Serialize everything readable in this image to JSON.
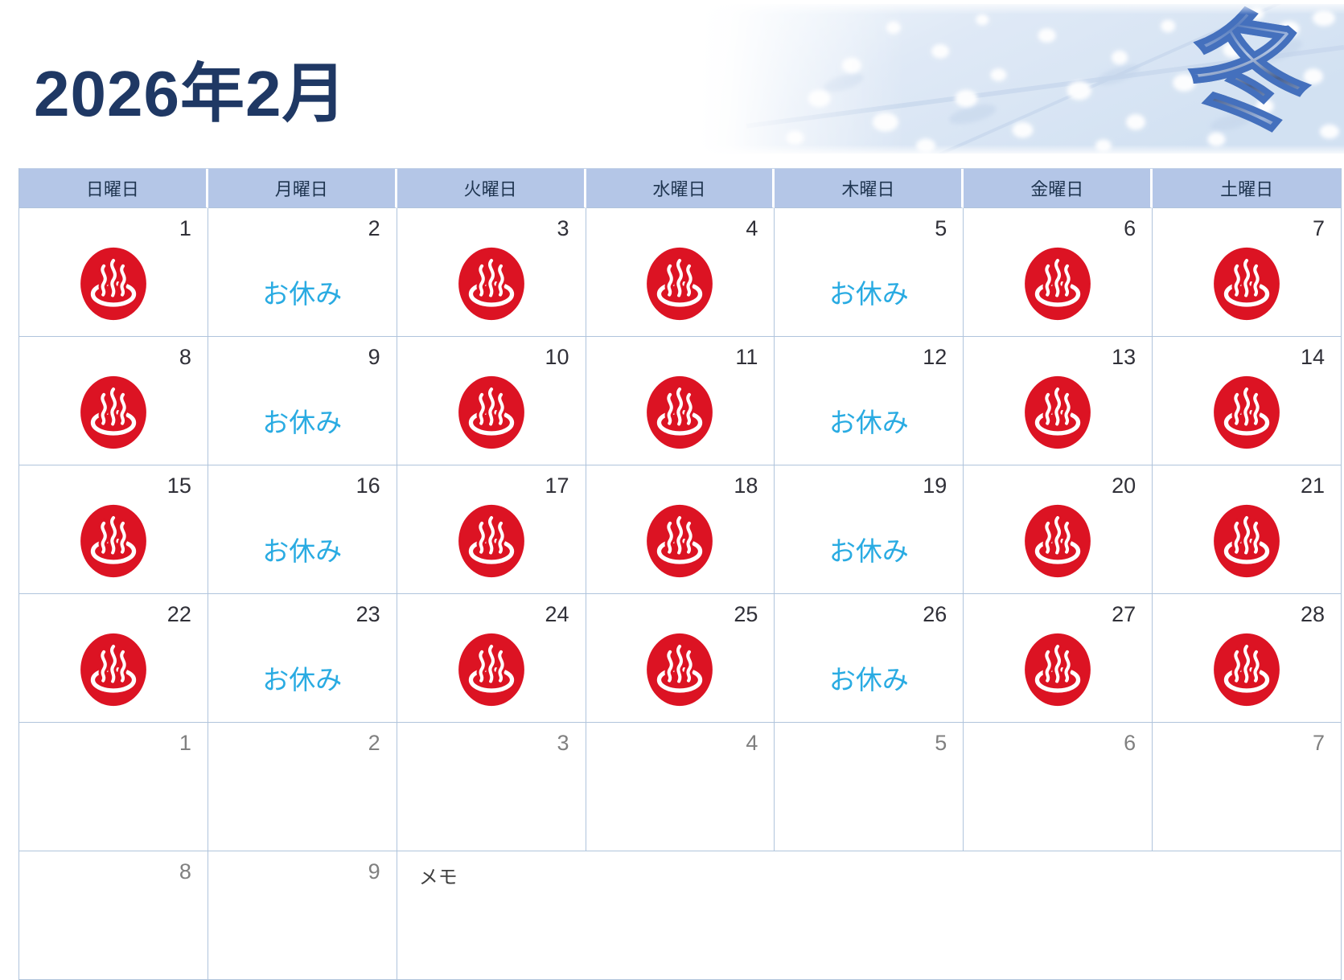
{
  "page": {
    "title": "2026年2月"
  },
  "banner": {
    "kanji": "冬"
  },
  "calendar": {
    "weekday_headers": [
      "日曜日",
      "月曜日",
      "火曜日",
      "水曜日",
      "木曜日",
      "金曜日",
      "土曜日"
    ],
    "closed_label": "お休み",
    "memo_label": "メモ",
    "weeks": [
      [
        {
          "day": "1",
          "status": "open"
        },
        {
          "day": "2",
          "status": "closed"
        },
        {
          "day": "3",
          "status": "open"
        },
        {
          "day": "4",
          "status": "open"
        },
        {
          "day": "5",
          "status": "closed"
        },
        {
          "day": "6",
          "status": "open"
        },
        {
          "day": "7",
          "status": "open"
        }
      ],
      [
        {
          "day": "8",
          "status": "open"
        },
        {
          "day": "9",
          "status": "closed"
        },
        {
          "day": "10",
          "status": "open"
        },
        {
          "day": "11",
          "status": "open"
        },
        {
          "day": "12",
          "status": "closed"
        },
        {
          "day": "13",
          "status": "open"
        },
        {
          "day": "14",
          "status": "open"
        }
      ],
      [
        {
          "day": "15",
          "status": "open"
        },
        {
          "day": "16",
          "status": "closed"
        },
        {
          "day": "17",
          "status": "open"
        },
        {
          "day": "18",
          "status": "open"
        },
        {
          "day": "19",
          "status": "closed"
        },
        {
          "day": "20",
          "status": "open"
        },
        {
          "day": "21",
          "status": "open"
        }
      ],
      [
        {
          "day": "22",
          "status": "open"
        },
        {
          "day": "23",
          "status": "closed"
        },
        {
          "day": "24",
          "status": "open"
        },
        {
          "day": "25",
          "status": "open"
        },
        {
          "day": "26",
          "status": "closed"
        },
        {
          "day": "27",
          "status": "open"
        },
        {
          "day": "28",
          "status": "open"
        }
      ],
      [
        {
          "day": "1",
          "status": "next"
        },
        {
          "day": "2",
          "status": "next"
        },
        {
          "day": "3",
          "status": "next"
        },
        {
          "day": "4",
          "status": "next"
        },
        {
          "day": "5",
          "status": "next"
        },
        {
          "day": "6",
          "status": "next"
        },
        {
          "day": "7",
          "status": "next"
        }
      ]
    ],
    "last_row": {
      "days": [
        {
          "day": "8",
          "status": "next"
        },
        {
          "day": "9",
          "status": "next"
        }
      ]
    }
  },
  "colors": {
    "title_navy": "#1f3864",
    "header_band_bg": "#b4c6e7",
    "grid_border": "#b0c4dc",
    "closed_cyan": "#29abe2",
    "onsen_red": "#dc1323",
    "next_month_gray": "#808080",
    "kanji_outline_blue": "#4470bd"
  }
}
